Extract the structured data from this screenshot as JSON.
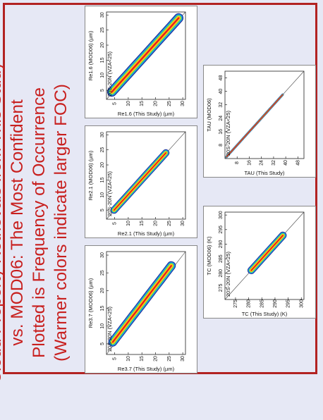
{
  "title": {
    "lines": [
      "Cloud Property Retrievals from This Study",
      "vs. MOD06: The Most Confident",
      "Plotted is Frequency of Occurrence",
      "(Warmer colors indicate larger FOC)"
    ]
  },
  "colors": {
    "title": "#c8201f",
    "frame": "#b22222",
    "background": "#e6e8f5",
    "foc_scale": [
      "#1f2a8a",
      "#1f63d6",
      "#21b3e0",
      "#2fc48a",
      "#b7e020",
      "#ffd21f",
      "#ff7a1a",
      "#e3151b"
    ]
  },
  "chart_data": [
    {
      "type": "heatmap",
      "panel_label": "20S-20N (VZA<25)",
      "xlabel": "Re1.6 (MOD06) (µm)",
      "ylabel": "Re1.6 (This Study) (µm)",
      "xticks": [
        "5",
        "10",
        "15",
        "20",
        "25",
        "30"
      ],
      "yticks": [
        "5",
        "10",
        "15",
        "20",
        "25",
        "30"
      ],
      "xlim": [
        2,
        31
      ],
      "ylim": [
        2,
        31
      ],
      "ridge": {
        "x": [
          4.5,
          6,
          8,
          10,
          12,
          14,
          17,
          20,
          23,
          26,
          29
        ],
        "y": [
          4,
          5.5,
          7.5,
          9.5,
          11.5,
          13.5,
          16.5,
          19.5,
          22.5,
          25.5,
          28.5
        ]
      },
      "spread": 1.6
    },
    {
      "type": "heatmap",
      "panel_label": "20S-20N (VZA<25)",
      "xlabel": "Re2.1 (MOD06) (µm)",
      "ylabel": "Re2.1 (This Study) (µm)",
      "xticks": [
        "5",
        "10",
        "15",
        "20",
        "25",
        "30"
      ],
      "yticks": [
        "5",
        "10",
        "15",
        "20",
        "25",
        "30"
      ],
      "xlim": [
        2,
        31
      ],
      "ylim": [
        2,
        31
      ],
      "ridge": {
        "x": [
          5,
          7,
          9,
          11,
          13,
          15,
          18,
          21,
          24
        ],
        "y": [
          4.8,
          6.8,
          8.8,
          10.8,
          12.8,
          14.8,
          17.8,
          20.8,
          23.8
        ]
      },
      "spread": 1.2
    },
    {
      "type": "heatmap",
      "panel_label": "20S-20N (VZA<25)",
      "xlabel": "Re3.7 (MOD06) (µm)",
      "ylabel": "Re3.7 (This Study) (µm)",
      "xticks": [
        "5",
        "10",
        "15",
        "20",
        "25",
        "30"
      ],
      "yticks": [
        "5",
        "10",
        "15",
        "20",
        "25",
        "30"
      ],
      "xlim": [
        2,
        31
      ],
      "ylim": [
        2,
        31
      ],
      "ridge": {
        "x": [
          5.5,
          7,
          9,
          11,
          13,
          15,
          17,
          19,
          21,
          23,
          25,
          27
        ],
        "y": [
          4.3,
          5.8,
          7.8,
          9.8,
          11.8,
          13.8,
          15.8,
          17.8,
          19.8,
          21.8,
          23.8,
          25.8
        ]
      },
      "spread": 1.5
    },
    {
      "type": "heatmap",
      "panel_label": "20S-20N (VZA<25)",
      "xlabel": "TAU (MOD06)",
      "ylabel": "TAU (This Study)",
      "xticks": [
        "8",
        "16",
        "24",
        "32",
        "40",
        "48"
      ],
      "yticks": [
        "8",
        "16",
        "24",
        "32",
        "40",
        "48"
      ],
      "xlim": [
        0,
        52
      ],
      "ylim": [
        0,
        52
      ],
      "ridge": {
        "x": [
          1,
          3,
          6,
          10,
          15,
          20,
          26,
          32,
          38
        ],
        "y": [
          1,
          3,
          6,
          10,
          15,
          20,
          26,
          32,
          38
        ]
      },
      "spread": 0.7
    },
    {
      "type": "heatmap",
      "panel_label": "20S-20N (VZA<25)",
      "xlabel": "TC (MOD06) (K)",
      "ylabel": "TC (This Study) (K)",
      "xticks": [
        "275",
        "280",
        "285",
        "290",
        "295",
        "300"
      ],
      "yticks": [
        "275",
        "280",
        "285",
        "290",
        "295",
        "300"
      ],
      "xlim": [
        271,
        301
      ],
      "ylim": [
        271,
        301
      ],
      "ridge": {
        "x": [
          281,
          283,
          285,
          287,
          289,
          291,
          293
        ],
        "y": [
          281,
          283,
          285,
          287,
          289,
          291,
          293
        ]
      },
      "spread": 1.3
    }
  ]
}
